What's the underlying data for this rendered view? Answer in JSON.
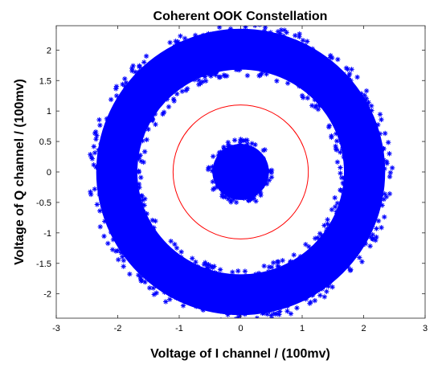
{
  "chart_data": {
    "type": "scatter",
    "title": "Coherent OOK Constellation",
    "xlabel": "Voltage of I channel / (100mv)",
    "ylabel": "Voltage of Q channel / (100mv)",
    "xlim": [
      -3,
      3
    ],
    "ylim": [
      -2.4,
      2.4
    ],
    "xticks": [
      -3,
      -2,
      -1,
      0,
      1,
      2,
      3
    ],
    "yticks": [
      2,
      1.5,
      1,
      0.5,
      0,
      -0.5,
      -1,
      -1.5,
      -2
    ],
    "grid": false,
    "legend": "none",
    "series": [
      {
        "kind": "points",
        "marker": "*",
        "color": "#0000ff",
        "clusters": [
          {
            "shape": "disc",
            "center": [
              0,
              0
            ],
            "radius": [
              0,
              0.5
            ]
          },
          {
            "shape": "ring",
            "center": [
              0,
              0
            ],
            "radius": [
              1.6,
              2.45
            ]
          }
        ]
      },
      {
        "kind": "circle",
        "color": "#ff0000",
        "center": [
          0,
          0
        ],
        "radius": 1.1
      }
    ]
  }
}
